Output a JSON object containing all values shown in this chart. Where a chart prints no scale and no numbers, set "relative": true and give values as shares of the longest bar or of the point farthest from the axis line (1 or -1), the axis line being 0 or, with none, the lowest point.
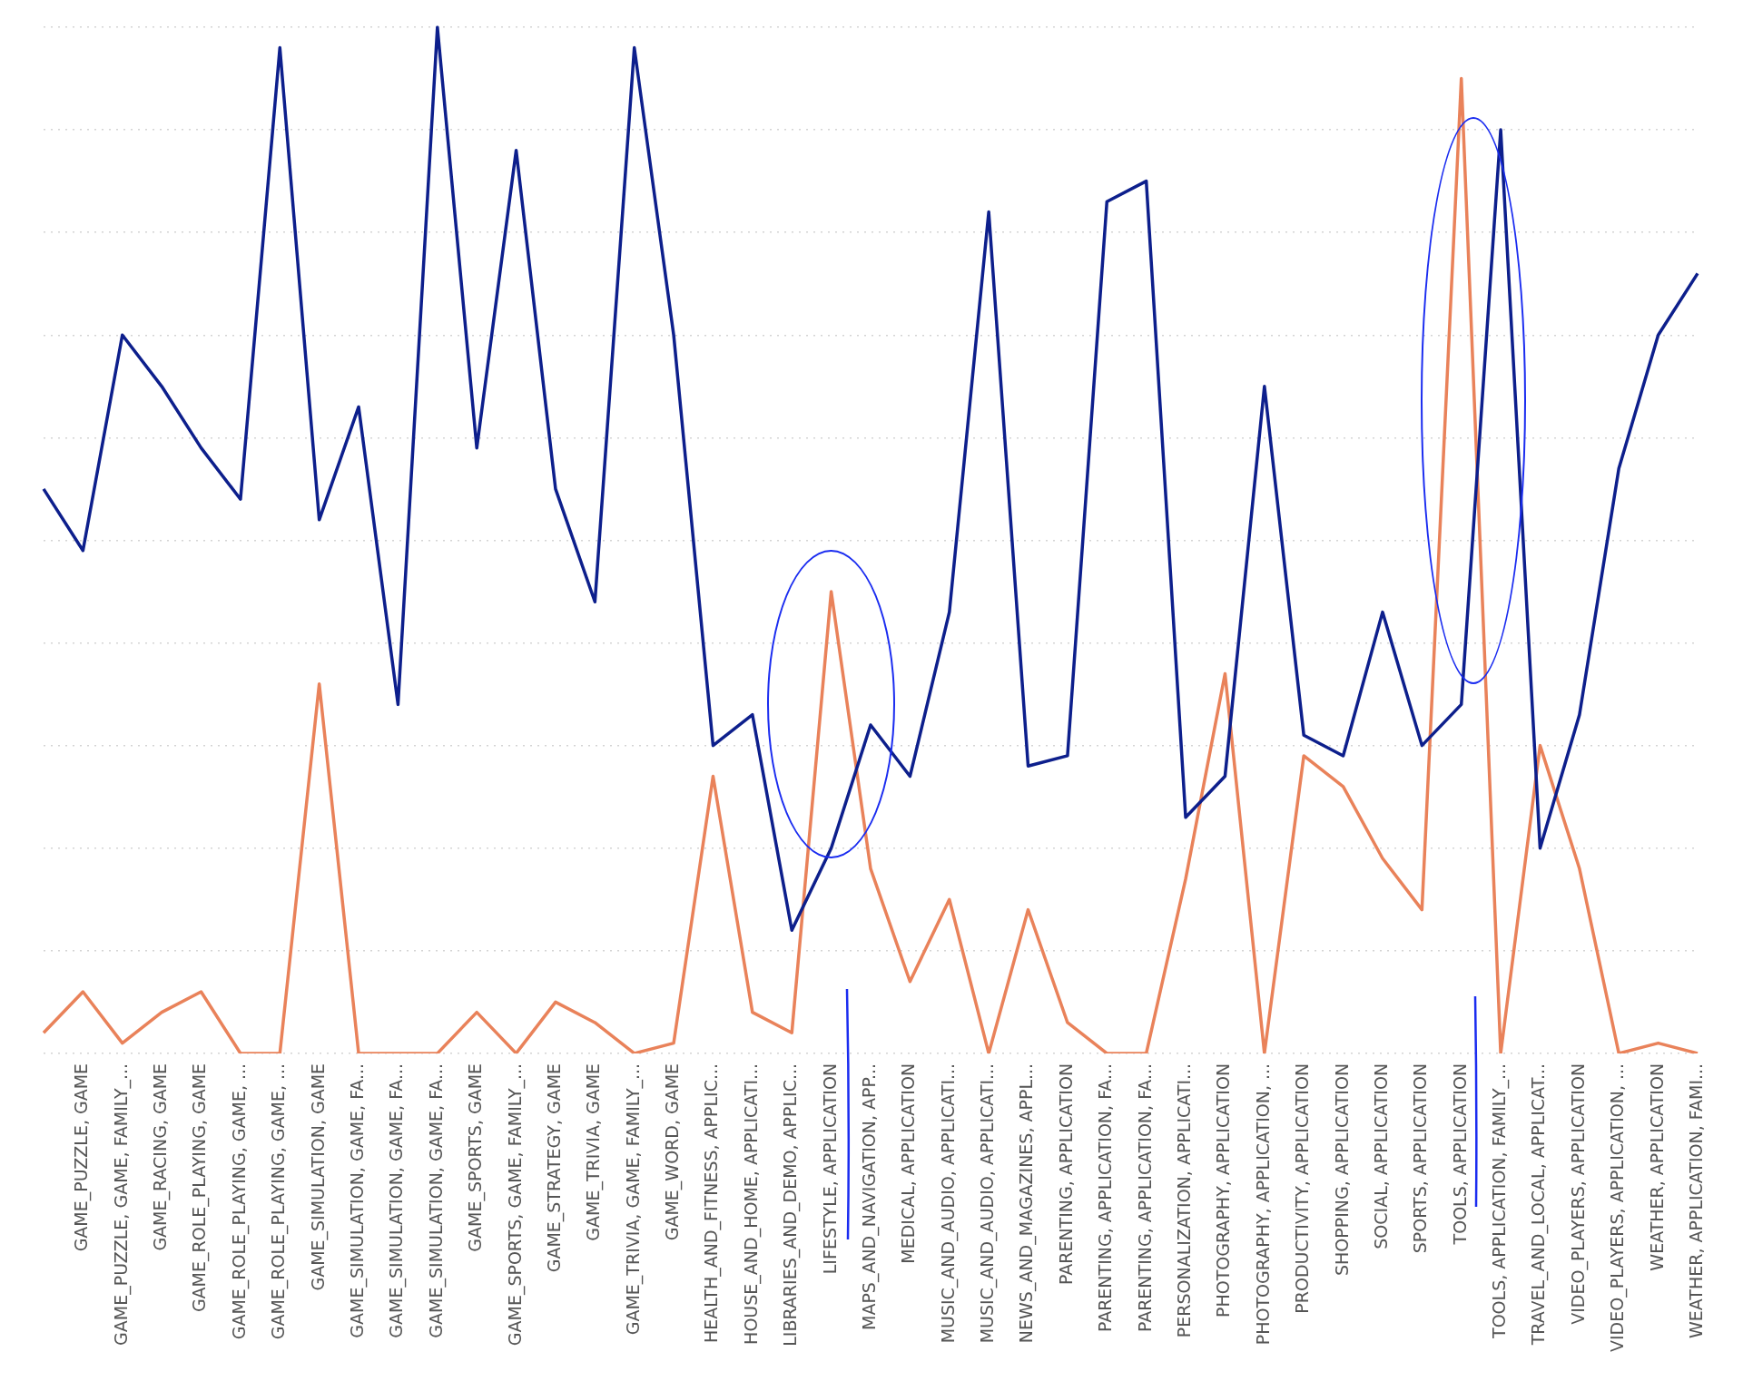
{
  "chart_data": {
    "type": "line",
    "relative": true,
    "grid": "y",
    "legend": false,
    "categories": [
      null,
      "GAME_PUZZLE, GAME",
      "GAME_PUZZLE, GAME, FAMILY_...",
      "GAME_RACING, GAME",
      "GAME_ROLE_PLAYING, GAME",
      "GAME_ROLE_PLAYING, GAME, ...",
      "GAME_ROLE_PLAYING, GAME, ...",
      "GAME_SIMULATION, GAME",
      "GAME_SIMULATION, GAME, FA...",
      "GAME_SIMULATION, GAME, FA...",
      "GAME_SIMULATION, GAME, FA...",
      "GAME_SPORTS, GAME",
      "GAME_SPORTS, GAME, FAMILY_...",
      "GAME_STRATEGY, GAME",
      "GAME_TRIVIA, GAME",
      "GAME_TRIVIA, GAME, FAMILY_...",
      "GAME_WORD, GAME",
      "HEALTH_AND_FITNESS, APPLIC...",
      "HOUSE_AND_HOME, APPLICATI...",
      "LIBRARIES_AND_DEMO, APPLIC...",
      "LIFESTYLE, APPLICATION",
      "MAPS_AND_NAVIGATION, APP...",
      "MEDICAL, APPLICATION",
      "MUSIC_AND_AUDIO, APPLICATI...",
      "MUSIC_AND_AUDIO, APPLICATI...",
      "NEWS_AND_MAGAZINES, APPL...",
      "PARENTING, APPLICATION",
      "PARENTING, APPLICATION, FA...",
      "PARENTING, APPLICATION, FA...",
      "PERSONALIZATION, APPLICATI...",
      "PHOTOGRAPHY, APPLICATION",
      "PHOTOGRAPHY, APPLICATION, ...",
      "PRODUCTIVITY, APPLICATION",
      "SHOPPING, APPLICATION",
      "SOCIAL, APPLICATION",
      "SPORTS, APPLICATION",
      "TOOLS, APPLICATION",
      "TOOLS, APPLICATION, FAMILY_...",
      "TRAVEL_AND_LOCAL, APPLICAT...",
      "VIDEO_PLAYERS, APPLICATION",
      "VIDEO_PLAYERS, APPLICATION, ...",
      "WEATHER, APPLICATION",
      "WEATHER, APPLICATION, FAMI..."
    ],
    "series": [
      {
        "color": "#0d1f8c",
        "values": [
          0.55,
          0.49,
          0.7,
          0.65,
          0.59,
          0.54,
          0.98,
          0.52,
          0.63,
          0.34,
          1,
          0.59,
          0.88,
          0.55,
          0.44,
          0.98,
          0.7,
          0.3,
          0.33,
          0.12,
          0.2,
          0.32,
          0.27,
          0.43,
          0.82,
          0.28,
          0.29,
          0.83,
          0.85,
          0.23,
          0.27,
          0.65,
          0.31,
          0.29,
          0.43,
          0.3,
          0.34,
          0.9,
          0.2,
          0.33,
          0.57,
          0.7,
          0.76
        ]
      },
      {
        "color": "#e9825a",
        "values": [
          0.02,
          0.06,
          0.01,
          0.04,
          0.06,
          0,
          0,
          0.36,
          0,
          0,
          0,
          0.04,
          0,
          0.05,
          0.03,
          0,
          0.01,
          0.27,
          0.04,
          0.02,
          0.45,
          0.18,
          0.07,
          0.15,
          0,
          0.14,
          0.03,
          0,
          0,
          0.17,
          0.37,
          0,
          0.29,
          0.26,
          0.19,
          0.14,
          0.95,
          0,
          0.3,
          0.18,
          0,
          0.01,
          0
        ]
      }
    ]
  }
}
